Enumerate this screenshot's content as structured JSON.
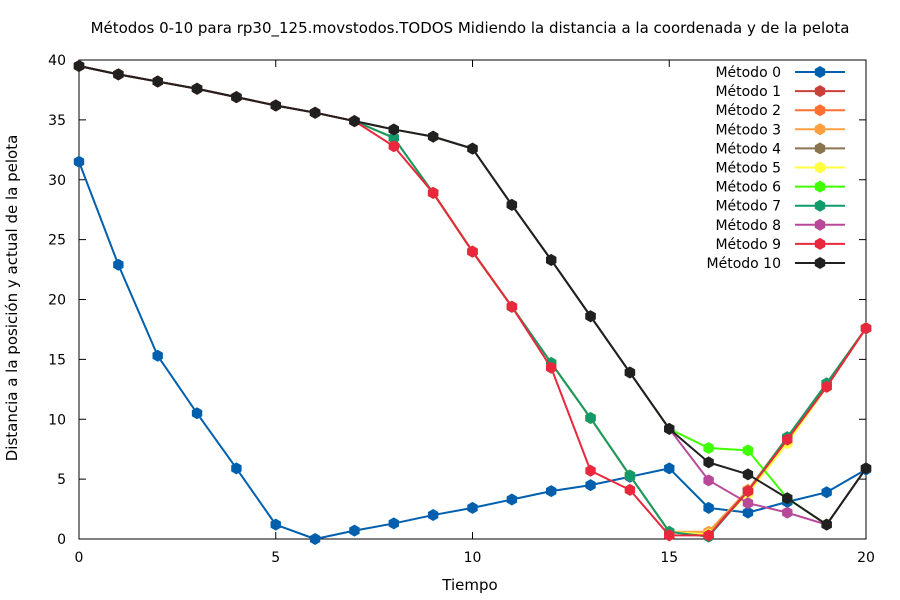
{
  "chart_data": {
    "type": "line",
    "title": "Métodos 0-10 para rp30_125.movstodos.TODOS Midiendo la distancia a la coordenada y de la pelota",
    "xlabel": "Tiempo",
    "ylabel": "Distancia a la posición y actual de la pelota",
    "xlim": [
      0,
      20
    ],
    "ylim": [
      0,
      40
    ],
    "xticks": [
      0,
      5,
      10,
      15,
      20
    ],
    "yticks": [
      0,
      5,
      10,
      15,
      20,
      25,
      30,
      35,
      40
    ],
    "grid": false,
    "legend_position": "top-right",
    "x": [
      0,
      1,
      2,
      3,
      4,
      5,
      6,
      7,
      8,
      9,
      10,
      11,
      12,
      13,
      14,
      15,
      16,
      17,
      18,
      19,
      20
    ],
    "series": [
      {
        "name": "Método 0",
        "color": "#0060ad",
        "values": [
          31.5,
          22.9,
          15.3,
          10.5,
          5.9,
          1.2,
          0.0,
          0.7,
          1.3,
          2.0,
          2.6,
          3.3,
          4.0,
          4.5,
          5.2,
          5.9,
          2.6,
          2.2,
          3.1,
          3.9,
          5.8
        ]
      },
      {
        "name": "Método 1",
        "color": "#c84038",
        "values": [
          39.5,
          38.8,
          38.2,
          37.6,
          36.9,
          36.2,
          35.6,
          34.9,
          33.5,
          28.9,
          24.0,
          19.4,
          14.7,
          10.1,
          5.3,
          0.6,
          0.4,
          4.0,
          8.3,
          12.8,
          17.6
        ]
      },
      {
        "name": "Método 2",
        "color": "#ff7030",
        "values": [
          39.5,
          38.8,
          38.2,
          37.6,
          36.9,
          36.2,
          35.6,
          34.9,
          33.5,
          28.9,
          24.0,
          19.4,
          14.7,
          10.1,
          5.3,
          0.6,
          0.6,
          4.1,
          8.5,
          13.0,
          17.6
        ]
      },
      {
        "name": "Método 3",
        "color": "#ffa040",
        "values": [
          39.5,
          38.8,
          38.2,
          37.6,
          36.9,
          36.2,
          35.6,
          34.9,
          33.5,
          28.9,
          24.0,
          19.4,
          14.7,
          10.1,
          5.3,
          0.6,
          0.6,
          4.1,
          8.5,
          13.0,
          17.6
        ]
      },
      {
        "name": "Método 4",
        "color": "#8a7550",
        "values": [
          39.5,
          38.8,
          38.2,
          37.6,
          36.9,
          36.2,
          35.6,
          34.9,
          33.5,
          28.9,
          24.0,
          19.4,
          14.7,
          10.1,
          5.3,
          0.6,
          0.4,
          4.0,
          8.3,
          12.8,
          17.6
        ]
      },
      {
        "name": "Método 5",
        "color": "#ffff40",
        "values": [
          39.5,
          38.8,
          38.2,
          37.6,
          36.9,
          36.2,
          35.6,
          34.9,
          33.5,
          28.9,
          24.0,
          19.4,
          14.7,
          10.1,
          5.3,
          0.6,
          0.4,
          3.8,
          8.0,
          12.7,
          17.6
        ]
      },
      {
        "name": "Método 6",
        "color": "#40ff00",
        "values": [
          39.5,
          38.8,
          38.2,
          37.6,
          36.9,
          36.2,
          35.6,
          34.9,
          34.2,
          33.6,
          32.6,
          27.9,
          23.3,
          18.6,
          13.9,
          9.2,
          7.6,
          7.4,
          3.4,
          1.2,
          5.9
        ]
      },
      {
        "name": "Método 7",
        "color": "#129a6a",
        "values": [
          39.5,
          38.8,
          38.2,
          37.6,
          36.9,
          36.2,
          35.6,
          34.9,
          33.5,
          28.9,
          24.0,
          19.4,
          14.7,
          10.1,
          5.3,
          0.6,
          0.2,
          4.0,
          8.5,
          13.0,
          17.6
        ]
      },
      {
        "name": "Método 8",
        "color": "#b84898",
        "values": [
          39.5,
          38.8,
          38.2,
          37.6,
          36.9,
          36.2,
          35.6,
          34.9,
          34.2,
          33.6,
          32.6,
          27.9,
          23.3,
          18.6,
          13.9,
          9.2,
          4.9,
          3.0,
          2.2,
          1.2,
          5.9
        ]
      },
      {
        "name": "Método 9",
        "color": "#e8283c",
        "values": [
          39.5,
          38.8,
          38.2,
          37.6,
          36.9,
          36.2,
          35.6,
          34.9,
          32.8,
          28.9,
          24.0,
          19.4,
          14.3,
          5.7,
          4.1,
          0.3,
          0.3,
          4.0,
          8.3,
          12.7,
          17.6
        ]
      },
      {
        "name": "Método 10",
        "color": "#202020",
        "values": [
          39.5,
          38.8,
          38.2,
          37.6,
          36.9,
          36.2,
          35.6,
          34.9,
          34.2,
          33.6,
          32.6,
          27.9,
          23.3,
          18.6,
          13.9,
          9.2,
          6.4,
          5.4,
          3.4,
          1.2,
          5.9
        ]
      }
    ]
  }
}
